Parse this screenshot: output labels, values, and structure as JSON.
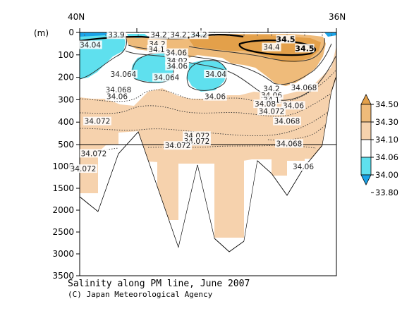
{
  "chart_data": {
    "type": "heatmap",
    "title": "Salinity along PM line, June 2007",
    "credit": "(C) Japan Meteorological Agency",
    "ylabel": "(m)",
    "x_labels": {
      "left": "40N",
      "right": "36N"
    },
    "y_ticks_upper": [
      0,
      100,
      200,
      300,
      400,
      500
    ],
    "y_ticks_lower": [
      1000,
      1500,
      2000,
      2500,
      3000,
      3500
    ],
    "y_upper_range": [
      0,
      500
    ],
    "y_lower_range": [
      500,
      3500
    ],
    "colorbar": {
      "levels": [
        "34.50",
        "34.30",
        "34.10",
        "34.06",
        "34.00",
        "33.80"
      ],
      "colors": [
        "#e3a04a",
        "#efbb7a",
        "#f6d2ad",
        "#ffffff",
        "#5fe0ee",
        "#1aa3e8"
      ]
    },
    "contour_labels": [
      {
        "text": "33.9",
        "depth": 10
      },
      {
        "text": "34.2",
        "depth": 10
      },
      {
        "text": "34.2",
        "depth": 10
      },
      {
        "text": "34.2",
        "depth": 10
      },
      {
        "text": "34.5",
        "depth": 30,
        "bold": true
      },
      {
        "text": "34.04",
        "depth": 55
      },
      {
        "text": "34.2",
        "depth": 50
      },
      {
        "text": "34.1",
        "depth": 75
      },
      {
        "text": "34.06",
        "depth": 90
      },
      {
        "text": "34.4",
        "depth": 65
      },
      {
        "text": "34.5",
        "depth": 70,
        "bold": true
      },
      {
        "text": "34.02",
        "depth": 125
      },
      {
        "text": "34.06",
        "depth": 150
      },
      {
        "text": "34.04",
        "depth": 185
      },
      {
        "text": "34.064",
        "depth": 185
      },
      {
        "text": "34.064",
        "depth": 200
      },
      {
        "text": "34.068",
        "depth": 255
      },
      {
        "text": "34.06",
        "depth": 285
      },
      {
        "text": "34.06",
        "depth": 285
      },
      {
        "text": "34.2",
        "depth": 250
      },
      {
        "text": "34.068",
        "depth": 245
      },
      {
        "text": "34.06",
        "depth": 280
      },
      {
        "text": "34.1",
        "depth": 300
      },
      {
        "text": "34.08",
        "depth": 318
      },
      {
        "text": "34.06",
        "depth": 325
      },
      {
        "text": "34.072",
        "depth": 350
      },
      {
        "text": "34.072",
        "depth": 395
      },
      {
        "text": "34.068",
        "depth": 395
      },
      {
        "text": "34.072",
        "depth": 460
      },
      {
        "text": "34.072",
        "depth": 485
      },
      {
        "text": "34.068",
        "depth": 495
      },
      {
        "text": "34.072",
        "depth": 700
      },
      {
        "text": "34.072",
        "depth": 1050
      },
      {
        "text": "34.072",
        "depth": 520
      },
      {
        "text": "34.06",
        "depth": 1000
      }
    ]
  }
}
